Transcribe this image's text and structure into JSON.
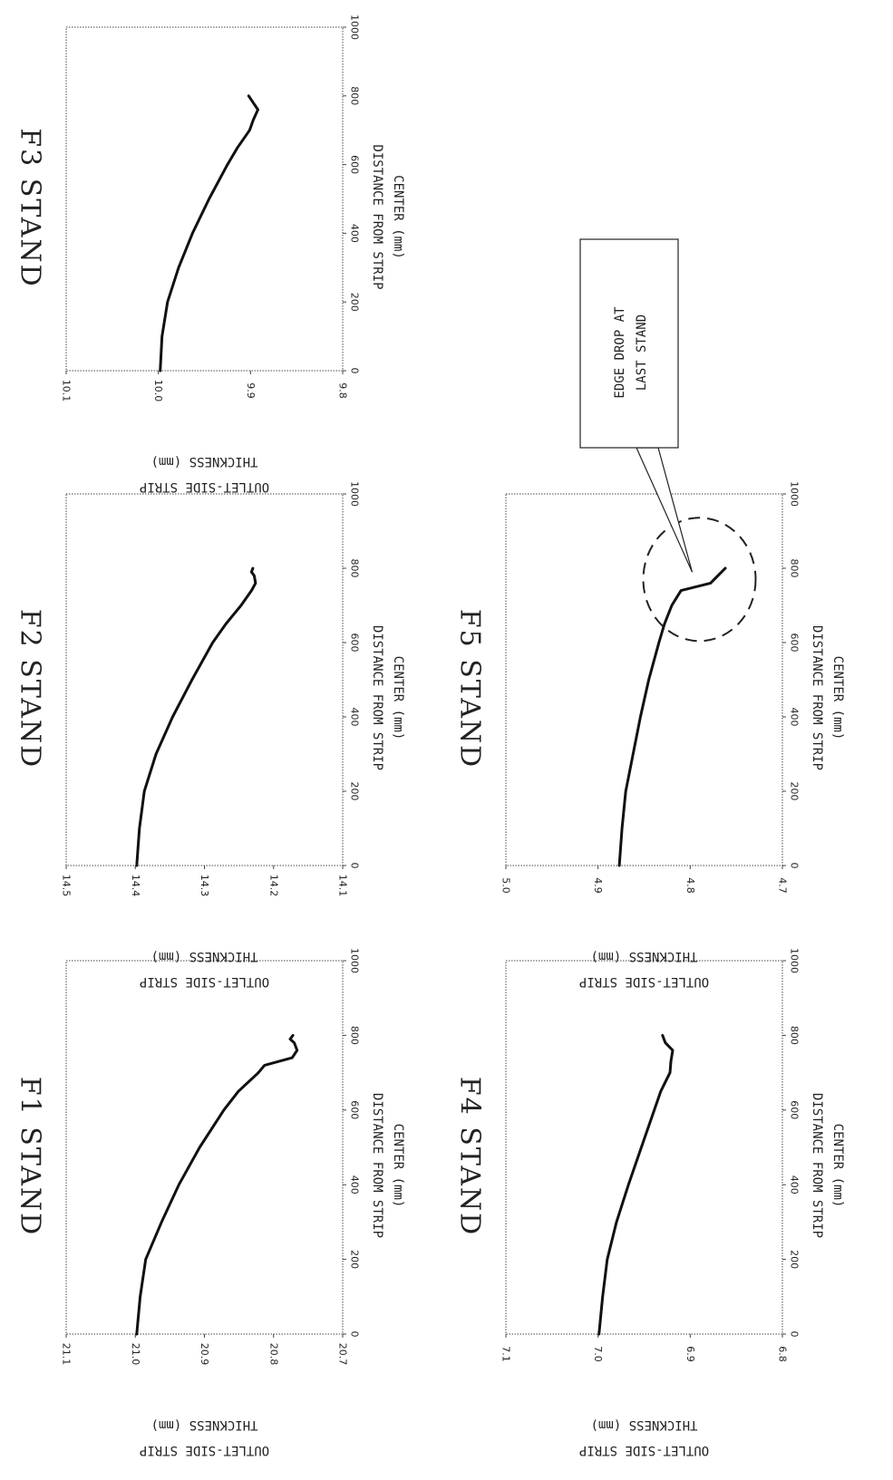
{
  "chart_data": [
    {
      "type": "line",
      "title": "F1 STAND",
      "xlabel": [
        "DISTANCE FROM STRIP",
        "CENTER (mm)"
      ],
      "ylabel": [
        "OUTLET-SIDE STRIP",
        "THICKNESS  (mm)"
      ],
      "xlim": [
        0,
        1000
      ],
      "ylim": [
        20.7,
        21.1
      ],
      "xticks": [
        "0",
        "200",
        "400",
        "600",
        "800",
        "1000"
      ],
      "yticks": [
        "20.7",
        "20.8",
        "20.9",
        "21.0",
        "21.1"
      ],
      "series": [
        {
          "x": [
            0,
            100,
            200,
            300,
            400,
            500,
            600,
            650,
            700,
            720,
            740,
            760,
            780,
            790,
            800
          ],
          "y": [
            20.998,
            20.993,
            20.985,
            20.962,
            20.937,
            20.907,
            20.872,
            20.851,
            20.822,
            20.813,
            20.773,
            20.766,
            20.77,
            20.776,
            20.772
          ]
        }
      ]
    },
    {
      "type": "line",
      "title": "F2 STAND",
      "xlabel": [
        "DISTANCE FROM STRIP",
        "CENTER (mm)"
      ],
      "ylabel": [
        "OUTLET-SIDE STRIP",
        "THICKNESS  (mm)"
      ],
      "xlim": [
        0,
        1000
      ],
      "ylim": [
        14.1,
        14.5
      ],
      "xticks": [
        "0",
        "200",
        "400",
        "600",
        "800",
        "1000"
      ],
      "yticks": [
        "14.1",
        "14.2",
        "14.3",
        "14.4",
        "14.5"
      ],
      "series": [
        {
          "x": [
            0,
            100,
            200,
            300,
            400,
            500,
            600,
            650,
            700,
            740,
            760,
            780,
            790,
            800
          ],
          "y": [
            14.398,
            14.394,
            14.387,
            14.37,
            14.346,
            14.318,
            14.288,
            14.269,
            14.247,
            14.232,
            14.226,
            14.228,
            14.232,
            14.23
          ]
        }
      ]
    },
    {
      "type": "line",
      "title": "F3 STAND",
      "xlabel": [
        "DISTANCE FROM STRIP",
        "CENTER (mm)"
      ],
      "ylabel": [
        "OUTLET-SIDE STRIP",
        "THICKNESS  (mm)"
      ],
      "xlim": [
        0,
        1000
      ],
      "ylim": [
        9.8,
        10.1
      ],
      "xticks": [
        "0",
        "200",
        "400",
        "600",
        "800",
        "1000"
      ],
      "yticks": [
        "9.8",
        "9.9",
        "10.0",
        "10.1"
      ],
      "series": [
        {
          "x": [
            0,
            100,
            200,
            300,
            400,
            500,
            600,
            650,
            700,
            730,
            760,
            780,
            800
          ],
          "y": [
            9.998,
            9.996,
            9.99,
            9.978,
            9.963,
            9.945,
            9.925,
            9.914,
            9.901,
            9.897,
            9.892,
            9.897,
            9.902
          ]
        }
      ]
    },
    {
      "type": "line",
      "title": "F4 STAND",
      "xlabel": [
        "DISTANCE FROM STRIP",
        "CENTER (mm)"
      ],
      "ylabel": [
        "OUTLET-SIDE STRIP",
        "THICKNESS  (mm)"
      ],
      "xlim": [
        0,
        1000
      ],
      "ylim": [
        6.8,
        7.1
      ],
      "xticks": [
        "0",
        "200",
        "400",
        "600",
        "800",
        "1000"
      ],
      "yticks": [
        "6.8",
        "6.9",
        "7.0",
        "7.1"
      ],
      "series": [
        {
          "x": [
            0,
            100,
            200,
            300,
            400,
            500,
            600,
            650,
            700,
            730,
            760,
            780,
            800
          ],
          "y": [
            6.999,
            6.995,
            6.99,
            6.98,
            6.967,
            6.953,
            6.939,
            6.932,
            6.922,
            6.921,
            6.919,
            6.927,
            6.93
          ]
        }
      ]
    },
    {
      "type": "line",
      "title": "F5 STAND",
      "xlabel": [
        "DISTANCE FROM STRIP",
        "CENTER (mm)"
      ],
      "ylabel": [
        "OUTLET-SIDE STRIP",
        "THICKNESS  (mm)"
      ],
      "xlim": [
        0,
        1000
      ],
      "ylim": [
        4.7,
        5.0
      ],
      "xticks": [
        "0",
        "200",
        "400",
        "600",
        "800",
        "1000"
      ],
      "yticks": [
        "4.7",
        "4.8",
        "4.9",
        "5.0"
      ],
      "series": [
        {
          "x": [
            0,
            100,
            200,
            300,
            400,
            500,
            600,
            650,
            700,
            740,
            760,
            800
          ],
          "y": [
            4.877,
            4.874,
            4.87,
            4.862,
            4.854,
            4.845,
            4.834,
            4.828,
            4.82,
            4.81,
            4.778,
            4.762
          ]
        }
      ],
      "annotation": {
        "text": [
          "EDGE DROP AT",
          "LAST STAND"
        ],
        "circle_center_data": [
          770,
          4.79
        ]
      }
    }
  ]
}
